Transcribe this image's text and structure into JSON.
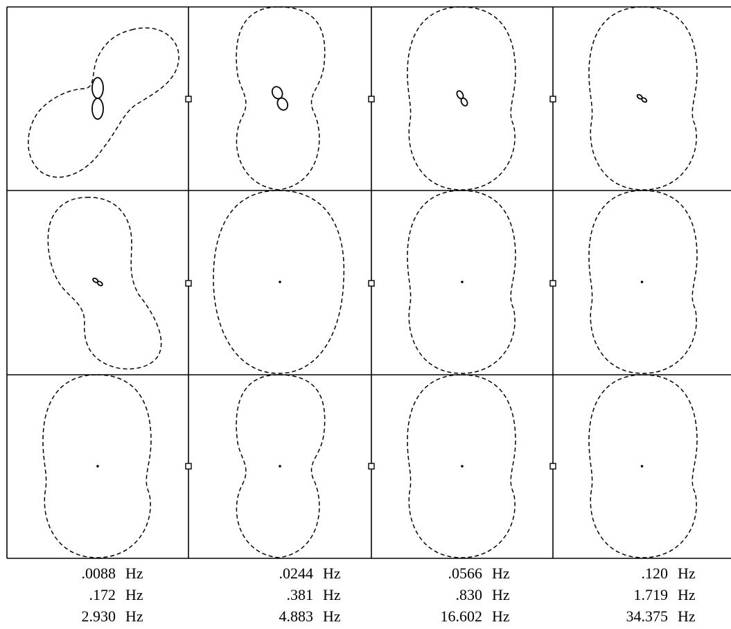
{
  "figure": {
    "rows": 3,
    "cols": 4,
    "line_color": "#000000",
    "outer_curve_style": "dashed",
    "inner_curve_style": "solid"
  },
  "panels": [
    {
      "row": 0,
      "col": 0,
      "inner": "figure-eight-large"
    },
    {
      "row": 0,
      "col": 1,
      "inner": "figure-eight-medium"
    },
    {
      "row": 0,
      "col": 2,
      "inner": "figure-eight-small"
    },
    {
      "row": 0,
      "col": 3,
      "inner": "figure-eight-tiny"
    },
    {
      "row": 1,
      "col": 0,
      "inner": "figure-eight-tiny"
    },
    {
      "row": 1,
      "col": 1,
      "inner": "dot"
    },
    {
      "row": 1,
      "col": 2,
      "inner": "dot"
    },
    {
      "row": 1,
      "col": 3,
      "inner": "dot"
    },
    {
      "row": 2,
      "col": 0,
      "inner": "dot"
    },
    {
      "row": 2,
      "col": 1,
      "inner": "dot"
    },
    {
      "row": 2,
      "col": 2,
      "inner": "dot"
    },
    {
      "row": 2,
      "col": 3,
      "inner": "dot"
    }
  ],
  "labels": {
    "columns": [
      {
        "lines": [
          {
            "value": ".0088",
            "unit": "Hz"
          },
          {
            "value": ".172",
            "unit": "Hz"
          },
          {
            "value": "2.930",
            "unit": "Hz"
          }
        ]
      },
      {
        "lines": [
          {
            "value": ".0244",
            "unit": "Hz"
          },
          {
            "value": ".381",
            "unit": "Hz"
          },
          {
            "value": "4.883",
            "unit": "Hz"
          }
        ]
      },
      {
        "lines": [
          {
            "value": ".0566",
            "unit": "Hz"
          },
          {
            "value": ".830",
            "unit": "Hz"
          },
          {
            "value": "16.602",
            "unit": "Hz"
          }
        ]
      },
      {
        "lines": [
          {
            "value": ".120",
            "unit": "Hz"
          },
          {
            "value": "1.719",
            "unit": "Hz"
          },
          {
            "value": "34.375",
            "unit": "Hz"
          }
        ]
      }
    ]
  }
}
